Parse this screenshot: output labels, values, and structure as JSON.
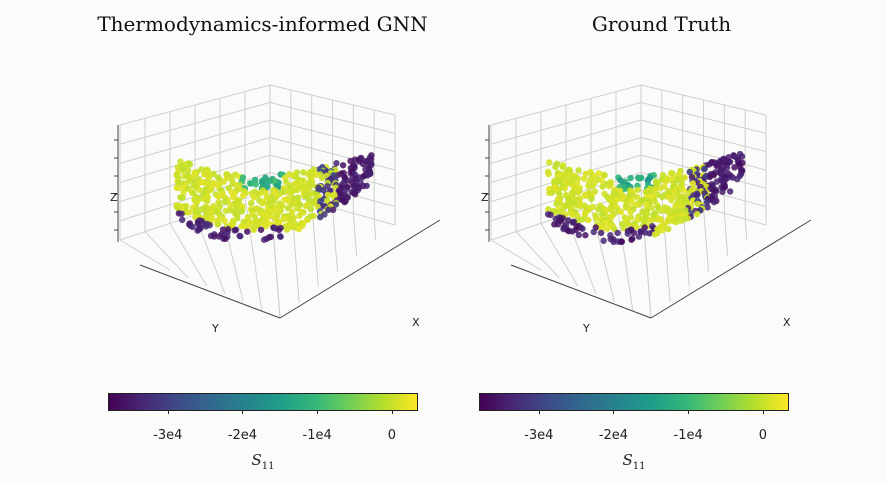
{
  "colormap": "viridis",
  "colors": {
    "viridis": [
      "#440154",
      "#482878",
      "#3e4a89",
      "#31688e",
      "#26828e",
      "#1f9e89",
      "#35b779",
      "#6ece58",
      "#b5de2b",
      "#fde725"
    ],
    "edge_dark": "#111111",
    "grid": "#cfcfcf",
    "background": "#fbfbf9"
  },
  "chart_data": [
    {
      "type": "scatter",
      "projection": "3d",
      "title": "Thermodynamics-informed GNN",
      "axis_labels": {
        "x": "X",
        "y": "Y",
        "z": "Z"
      },
      "color_quantity": "S11",
      "colorbar": {
        "label_symbol": "S",
        "label_subscript": "11",
        "range": [
          -38000,
          3500
        ],
        "ticks": [
          -30000,
          -20000,
          -10000,
          0
        ],
        "tick_labels": [
          "-3e4",
          "-2e4",
          "-1e4",
          "0"
        ]
      },
      "description_of_field": "Bean-shaped point cloud; most points near 0 (yellow-green), a small band of about -1e4 to -2e4 (teal/green) near top center, strong negative values (dark) at the right lobe and lower left edge"
    },
    {
      "type": "scatter",
      "projection": "3d",
      "title": "Ground Truth",
      "axis_labels": {
        "x": "X",
        "y": "Y",
        "z": "Z"
      },
      "color_quantity": "S11",
      "colorbar": {
        "label_symbol": "S",
        "label_subscript": "11",
        "range": [
          -38000,
          3500
        ],
        "ticks": [
          -30000,
          -20000,
          -10000,
          0
        ],
        "tick_labels": [
          "-3e4",
          "-2e4",
          "-1e4",
          "0"
        ]
      },
      "description_of_field": "Nearly identical field to the prediction; slightly narrower teal band near the top center"
    }
  ]
}
